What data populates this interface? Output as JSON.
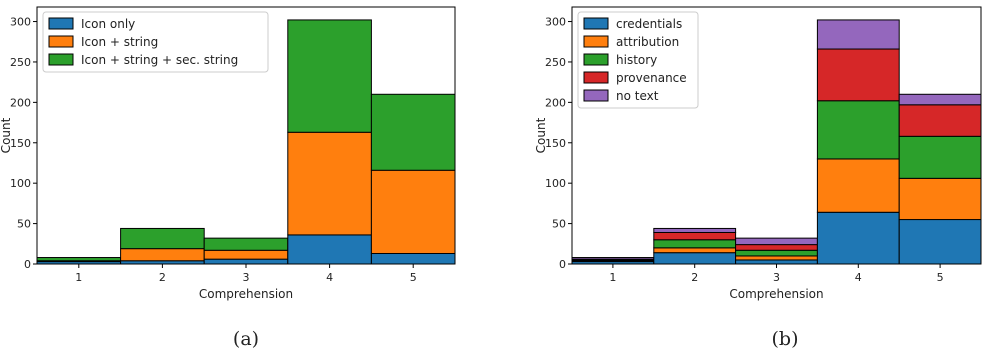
{
  "chart_data": [
    {
      "type": "bar",
      "stacked": true,
      "caption": "(a)",
      "categories": [
        "1",
        "2",
        "3",
        "4",
        "5"
      ],
      "xlabel": "Comprehension",
      "ylabel": "Count",
      "ylim": [
        0,
        318
      ],
      "yticks": [
        "0",
        "50",
        "100",
        "150",
        "200",
        "250",
        "300"
      ],
      "legend_position": "top-left",
      "series": [
        {
          "name": "Icon only",
          "color": "#1f77b4",
          "values": [
            3,
            4,
            6,
            36,
            13
          ]
        },
        {
          "name": "Icon + string",
          "color": "#ff7f0e",
          "values": [
            1,
            15,
            11,
            127,
            103
          ]
        },
        {
          "name": "Icon + string + sec. string",
          "color": "#2ca02c",
          "values": [
            4,
            25,
            15,
            139,
            94
          ]
        }
      ]
    },
    {
      "type": "bar",
      "stacked": true,
      "caption": "(b)",
      "categories": [
        "1",
        "2",
        "3",
        "4",
        "5"
      ],
      "xlabel": "Comprehension",
      "ylabel": "Count",
      "ylim": [
        0,
        318
      ],
      "yticks": [
        "0",
        "50",
        "100",
        "150",
        "200",
        "250",
        "300"
      ],
      "legend_position": "top-left",
      "series": [
        {
          "name": "credentials",
          "color": "#1f77b4",
          "values": [
            3,
            14,
            5,
            64,
            55
          ]
        },
        {
          "name": "attribution",
          "color": "#ff7f0e",
          "values": [
            1,
            6,
            5,
            66,
            51
          ]
        },
        {
          "name": "history",
          "color": "#2ca02c",
          "values": [
            1,
            10,
            7,
            72,
            52
          ]
        },
        {
          "name": "provenance",
          "color": "#d62728",
          "values": [
            1,
            9,
            7,
            64,
            39
          ]
        },
        {
          "name": "no text",
          "color": "#9467bd",
          "values": [
            2,
            5,
            8,
            36,
            13
          ]
        }
      ]
    }
  ]
}
